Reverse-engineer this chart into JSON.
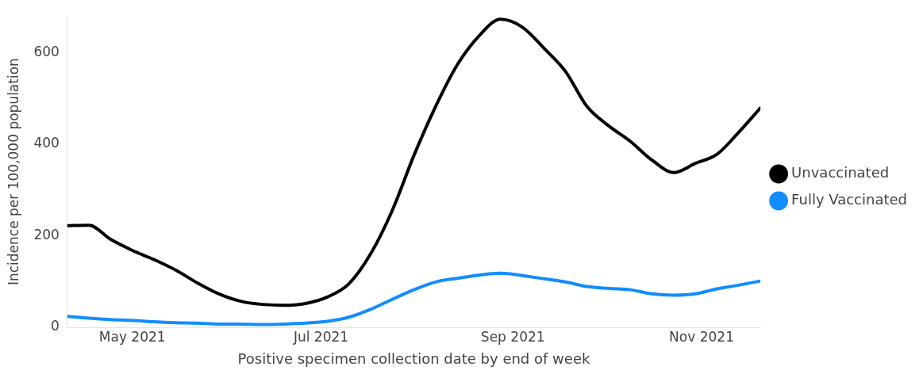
{
  "chart_data": {
    "type": "line",
    "xlabel": "Positive specimen collection date by end of week",
    "ylabel": "Incidence per 100,000 population",
    "x": [
      "2021-04-10",
      "2021-04-17",
      "2021-04-24",
      "2021-05-01",
      "2021-05-08",
      "2021-05-15",
      "2021-05-22",
      "2021-05-29",
      "2021-06-05",
      "2021-06-12",
      "2021-06-19",
      "2021-06-26",
      "2021-07-03",
      "2021-07-10",
      "2021-07-17",
      "2021-07-24",
      "2021-07-31",
      "2021-08-07",
      "2021-08-14",
      "2021-08-21",
      "2021-08-28",
      "2021-09-04",
      "2021-09-11",
      "2021-09-18",
      "2021-09-25",
      "2021-10-02",
      "2021-10-09",
      "2021-10-16",
      "2021-10-23",
      "2021-10-30",
      "2021-11-06",
      "2021-11-13",
      "2021-11-20"
    ],
    "series": [
      {
        "name": "Unvaccinated",
        "color": "#000000",
        "values": [
          222,
          223,
          192,
          168,
          148,
          125,
          97,
          73,
          57,
          50,
          48,
          52,
          66,
          95,
          160,
          255,
          375,
          482,
          573,
          636,
          673,
          656,
          610,
          559,
          482,
          440,
          406,
          365,
          338,
          358,
          378,
          426,
          479
        ]
      },
      {
        "name": "Fully Vaccinated",
        "color": "#118dff",
        "values": [
          24,
          20,
          17,
          15,
          12,
          10,
          9,
          7,
          7,
          6,
          7,
          9,
          13,
          22,
          39,
          61,
          82,
          99,
          107,
          114,
          118,
          113,
          106,
          99,
          89,
          85,
          82,
          73,
          70,
          73,
          84,
          92,
          101
        ]
      }
    ],
    "xlim": [
      "2021-04-10",
      "2021-11-20"
    ],
    "xticks": [
      {
        "value": "2021-05-01",
        "label": "May 2021"
      },
      {
        "value": "2021-07-01",
        "label": "Jul 2021"
      },
      {
        "value": "2021-09-01",
        "label": "Sep 2021"
      },
      {
        "value": "2021-11-01",
        "label": "Nov 2021"
      }
    ],
    "ylim": [
      0,
      680
    ],
    "yticks": [
      0,
      200,
      400,
      600
    ],
    "grid": false,
    "legend": "right",
    "marker": "none",
    "line_style": "solid"
  }
}
